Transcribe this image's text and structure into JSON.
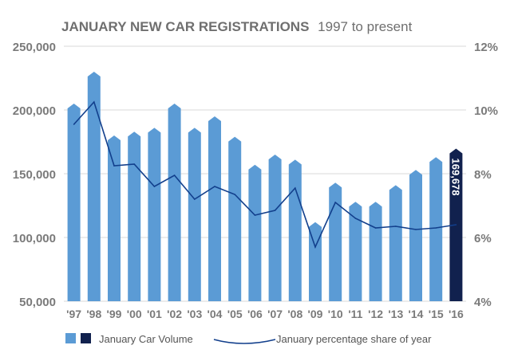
{
  "chart_data": {
    "type": "bar",
    "title": "JANUARY NEW CAR REGISTRATIONS",
    "subtitle": "1997 to present",
    "categories": [
      "'97",
      "'98",
      "'99",
      "'00",
      "'01",
      "'02",
      "'03",
      "'04",
      "'05",
      "'06",
      "'07",
      "'08",
      "'09",
      "'10",
      "'11",
      "'12",
      "'13",
      "'14",
      "'15",
      "'16"
    ],
    "series": [
      {
        "name": "January Car Volume",
        "type": "bar",
        "axis": "left",
        "values": [
          205000,
          230000,
          180000,
          183000,
          186000,
          205000,
          186000,
          195000,
          179000,
          157000,
          165000,
          161000,
          112000,
          143000,
          128000,
          128000,
          141000,
          153000,
          163000,
          169678
        ]
      },
      {
        "name": "January percentage share of year",
        "type": "line",
        "axis": "right",
        "values": [
          9.55,
          10.25,
          8.25,
          8.3,
          7.6,
          7.95,
          7.2,
          7.6,
          7.35,
          6.7,
          6.85,
          7.55,
          5.7,
          7.1,
          6.6,
          6.3,
          6.35,
          6.25,
          6.3,
          6.4
        ]
      }
    ],
    "highlight": {
      "index": 19,
      "label": "169,678",
      "color": "#11214e"
    },
    "y_left": {
      "min": 50000,
      "max": 250000,
      "ticks": [
        "50,000",
        "100,000",
        "150,000",
        "200,000",
        "250,000"
      ],
      "tick_values": [
        50000,
        100000,
        150000,
        200000,
        250000
      ]
    },
    "y_right": {
      "min": 4,
      "max": 12,
      "ticks": [
        "4%",
        "6%",
        "8%",
        "10%",
        "12%"
      ],
      "tick_values": [
        4,
        6,
        8,
        10,
        12
      ]
    },
    "grid": true,
    "legend_position": "bottom-left",
    "colors": {
      "bar": "#5b9bd5",
      "bar_top": "#7fb4e3",
      "highlight": "#11214e",
      "line": "#123f8c",
      "grid": "#d9d9d9",
      "axis_text": "#7a7a7a",
      "title": "#6f6f6f"
    }
  }
}
